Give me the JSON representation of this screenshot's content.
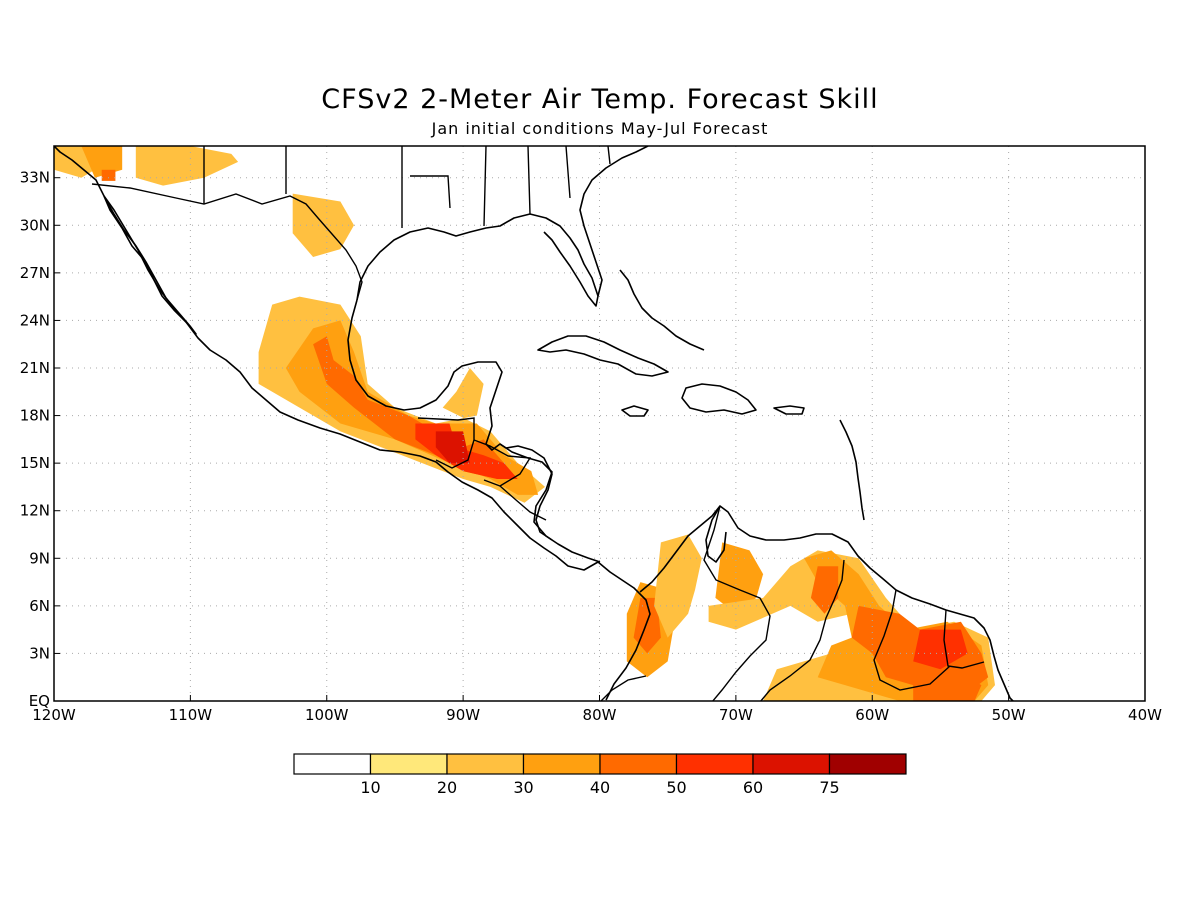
{
  "title": "CFSv2 2-Meter Air Temp. Forecast Skill",
  "subtitle": "Jan initial conditions  May-Jul Forecast",
  "lon_ticks": [
    "120W",
    "110W",
    "100W",
    "90W",
    "80W",
    "70W",
    "60W",
    "50W",
    "40W"
  ],
  "lon_values": [
    -120,
    -110,
    -100,
    -90,
    -80,
    -70,
    -60,
    -50,
    -40
  ],
  "lat_ticks": [
    "EQ",
    "3N",
    "6N",
    "9N",
    "12N",
    "15N",
    "18N",
    "21N",
    "24N",
    "27N",
    "30N",
    "33N"
  ],
  "lat_values": [
    0,
    3,
    6,
    9,
    12,
    15,
    18,
    21,
    24,
    27,
    30,
    33
  ],
  "extent": {
    "lon": [
      -120,
      -40
    ],
    "lat": [
      0,
      35
    ]
  },
  "colorbar": {
    "labels": [
      "10",
      "20",
      "30",
      "40",
      "50",
      "60",
      "75"
    ],
    "colors": [
      "#ffffff",
      "#ffe87a",
      "#ffc040",
      "#ffa010",
      "#ff6a00",
      "#ff3000",
      "#dc1200",
      "#a00000"
    ]
  },
  "chart_data": {
    "type": "heatmap",
    "title": "CFSv2 2-Meter Air Temp. Forecast Skill",
    "subtitle": "Jan initial conditions  May-Jul Forecast",
    "xlim": [
      -120,
      -40
    ],
    "ylim": [
      0,
      35
    ],
    "grid": true,
    "levels": [
      10,
      20,
      30,
      40,
      50,
      60,
      75
    ],
    "regions": [
      {
        "name": "",
        "level": 20,
        "poly": [
          [
            -120,
            35
          ],
          [
            -117,
            35
          ],
          [
            -117,
            33.5
          ],
          [
            -118,
            33
          ],
          [
            -120,
            33.5
          ]
        ]
      },
      {
        "name": "",
        "level": 20,
        "poly": [
          [
            -114,
            35
          ],
          [
            -110,
            35
          ],
          [
            -107,
            34.5
          ],
          [
            -106.5,
            34
          ],
          [
            -109,
            33
          ],
          [
            -112,
            32.5
          ],
          [
            -114,
            33
          ]
        ]
      },
      {
        "name": "",
        "level": 30,
        "poly": [
          [
            -118,
            35
          ],
          [
            -115,
            35
          ],
          [
            -115,
            33.5
          ],
          [
            -117,
            33
          ]
        ]
      },
      {
        "name": "",
        "level": 40,
        "poly": [
          [
            -116.5,
            33.5
          ],
          [
            -115.5,
            33.5
          ],
          [
            -115.5,
            32.8
          ],
          [
            -116.5,
            32.8
          ]
        ]
      },
      {
        "name": "",
        "level": 20,
        "poly": [
          [
            -102.5,
            32
          ],
          [
            -99,
            31.5
          ],
          [
            -98,
            30
          ],
          [
            -99,
            28.5
          ],
          [
            -101,
            28
          ],
          [
            -102.5,
            29.5
          ]
        ]
      },
      {
        "name": "",
        "level": 20,
        "poly": [
          [
            -104,
            25
          ],
          [
            -102,
            25.5
          ],
          [
            -99,
            25
          ],
          [
            -97.5,
            23
          ],
          [
            -97,
            20
          ],
          [
            -95,
            18.5
          ],
          [
            -92,
            17.5
          ],
          [
            -89,
            18
          ],
          [
            -88.5,
            20
          ],
          [
            -89.5,
            21
          ],
          [
            -90.5,
            19.5
          ],
          [
            -91.5,
            18.5
          ],
          [
            -88,
            17
          ],
          [
            -86,
            15
          ],
          [
            -84,
            13.5
          ],
          [
            -85.5,
            12.5
          ],
          [
            -88,
            13.5
          ],
          [
            -90,
            14
          ],
          [
            -93,
            15
          ],
          [
            -96,
            16
          ],
          [
            -99,
            17
          ],
          [
            -102,
            18.5
          ],
          [
            -104,
            19.5
          ],
          [
            -105,
            20
          ],
          [
            -105,
            22
          ]
        ]
      },
      {
        "name": "",
        "level": 30,
        "poly": [
          [
            -103,
            21
          ],
          [
            -101,
            23.5
          ],
          [
            -99,
            24
          ],
          [
            -98,
            22
          ],
          [
            -97,
            19.5
          ],
          [
            -94,
            18
          ],
          [
            -92,
            17.5
          ],
          [
            -89,
            17.5
          ],
          [
            -87,
            15.5
          ],
          [
            -85,
            14.5
          ],
          [
            -84.5,
            13
          ],
          [
            -86,
            13
          ],
          [
            -88,
            14
          ],
          [
            -91,
            15
          ],
          [
            -95,
            16.5
          ],
          [
            -99,
            17.5
          ],
          [
            -102,
            19.5
          ]
        ]
      },
      {
        "name": "",
        "level": 40,
        "poly": [
          [
            -101,
            22.5
          ],
          [
            -100,
            23
          ],
          [
            -99.5,
            21.5
          ],
          [
            -98,
            20.5
          ],
          [
            -97,
            19
          ],
          [
            -94,
            18
          ],
          [
            -92,
            17
          ],
          [
            -90,
            16
          ],
          [
            -88.5,
            16.5
          ],
          [
            -87,
            15
          ],
          [
            -86,
            14
          ],
          [
            -87.5,
            14
          ],
          [
            -90,
            14.5
          ],
          [
            -92,
            15.5
          ],
          [
            -95,
            16.5
          ],
          [
            -98,
            18.5
          ],
          [
            -100,
            20
          ]
        ]
      },
      {
        "name": "",
        "level": 50,
        "poly": [
          [
            -93.5,
            17.5
          ],
          [
            -91,
            17.5
          ],
          [
            -90.5,
            16
          ],
          [
            -88.5,
            15.5
          ],
          [
            -87,
            15
          ],
          [
            -86,
            14
          ],
          [
            -87.5,
            14
          ],
          [
            -90,
            14.5
          ],
          [
            -92,
            15.5
          ],
          [
            -93.5,
            16.5
          ]
        ]
      },
      {
        "name": "",
        "level": 60,
        "poly": [
          [
            -92,
            17
          ],
          [
            -90,
            17
          ],
          [
            -89.5,
            15
          ],
          [
            -91,
            15
          ],
          [
            -92,
            16
          ]
        ]
      },
      {
        "name": "",
        "level": 30,
        "poly": [
          [
            -77,
            7.5
          ],
          [
            -75,
            7
          ],
          [
            -74.5,
            5
          ],
          [
            -75,
            2.5
          ],
          [
            -76.5,
            1.5
          ],
          [
            -78,
            2.5
          ],
          [
            -78,
            5.5
          ]
        ]
      },
      {
        "name": "",
        "level": 40,
        "poly": [
          [
            -77,
            6.5
          ],
          [
            -75.8,
            6.5
          ],
          [
            -75.5,
            4
          ],
          [
            -76.5,
            3
          ],
          [
            -77.5,
            4
          ]
        ]
      },
      {
        "name": "",
        "level": 20,
        "poly": [
          [
            -75.5,
            10
          ],
          [
            -73.5,
            10.5
          ],
          [
            -72.5,
            9
          ],
          [
            -73,
            7
          ],
          [
            -73.5,
            5.5
          ],
          [
            -75,
            4
          ],
          [
            -76,
            6
          ]
        ]
      },
      {
        "name": "",
        "level": 30,
        "poly": [
          [
            -71,
            10
          ],
          [
            -69,
            9.5
          ],
          [
            -68,
            8
          ],
          [
            -68.5,
            6.5
          ],
          [
            -70,
            5.5
          ],
          [
            -71.5,
            6.5
          ]
        ]
      },
      {
        "name": "",
        "level": 20,
        "poly": [
          [
            -72,
            6
          ],
          [
            -68,
            6.5
          ],
          [
            -66,
            8.5
          ],
          [
            -64,
            9.5
          ],
          [
            -61,
            9
          ],
          [
            -59,
            6.5
          ],
          [
            -57,
            4.5
          ],
          [
            -54,
            5
          ],
          [
            -51.5,
            4
          ],
          [
            -51,
            1
          ],
          [
            -52,
            0
          ],
          [
            -55,
            0
          ],
          [
            -60,
            0
          ],
          [
            -64,
            0
          ],
          [
            -68,
            0
          ],
          [
            -67,
            2
          ],
          [
            -63,
            3
          ],
          [
            -61,
            4
          ],
          [
            -61.5,
            5.5
          ],
          [
            -64,
            5
          ],
          [
            -66,
            6
          ],
          [
            -70,
            4.5
          ],
          [
            -72,
            5
          ]
        ]
      },
      {
        "name": "",
        "level": 30,
        "poly": [
          [
            -65,
            9
          ],
          [
            -63,
            9.5
          ],
          [
            -61,
            8
          ],
          [
            -59.5,
            6
          ],
          [
            -57.5,
            4.5
          ],
          [
            -54.5,
            5
          ],
          [
            -52,
            3.5
          ],
          [
            -51.5,
            1
          ],
          [
            -52.5,
            0
          ],
          [
            -58,
            0
          ],
          [
            -62,
            1
          ],
          [
            -64,
            1.5
          ],
          [
            -63,
            3.5
          ],
          [
            -61.5,
            4
          ],
          [
            -62,
            6
          ],
          [
            -64,
            7.5
          ]
        ]
      },
      {
        "name": "",
        "level": 40,
        "poly": [
          [
            -64,
            8.5
          ],
          [
            -62.5,
            8.5
          ],
          [
            -62.5,
            6.5
          ],
          [
            -63.5,
            5.5
          ],
          [
            -64.5,
            6.5
          ]
        ]
      },
      {
        "name": "",
        "level": 40,
        "poly": [
          [
            -61,
            6
          ],
          [
            -58,
            5.5
          ],
          [
            -56.5,
            4.5
          ],
          [
            -53.5,
            5
          ],
          [
            -52,
            3
          ],
          [
            -51.5,
            1.5
          ],
          [
            -53,
            0.5
          ],
          [
            -55,
            1.5
          ],
          [
            -57,
            1
          ],
          [
            -59,
            1.5
          ],
          [
            -60,
            3
          ],
          [
            -61.5,
            4
          ]
        ]
      },
      {
        "name": "",
        "level": 50,
        "poly": [
          [
            -56.5,
            4.5
          ],
          [
            -53.5,
            4.5
          ],
          [
            -53,
            3
          ],
          [
            -55,
            2
          ],
          [
            -57,
            2.5
          ]
        ]
      },
      {
        "name": "",
        "level": 40,
        "poly": [
          [
            -57,
            1.5
          ],
          [
            -54,
            2
          ],
          [
            -52,
            1
          ],
          [
            -52.5,
            0
          ],
          [
            -57,
            0
          ]
        ]
      }
    ]
  }
}
